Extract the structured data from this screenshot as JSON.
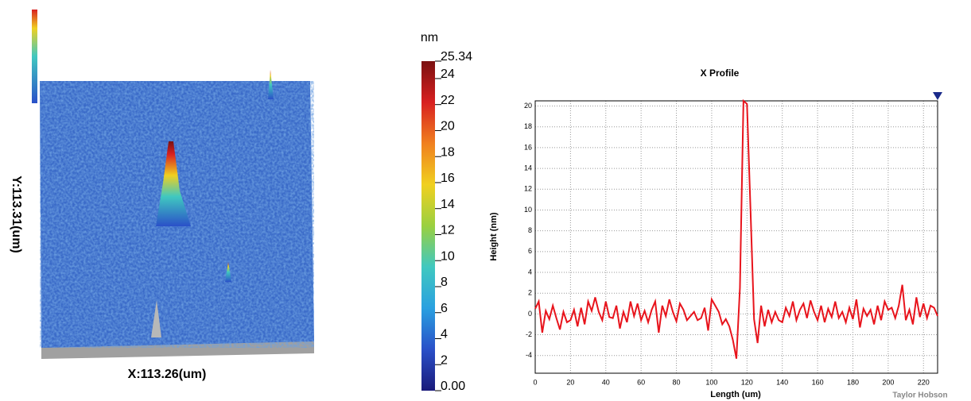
{
  "chart_data": [
    {
      "type": "surface",
      "x_label": "X:113.26(um)",
      "y_label": "Y:113.31(um)"
    },
    {
      "type": "colorbar",
      "unit": "nm",
      "ylim": [
        0,
        25.34
      ],
      "yticks": [
        {
          "value": 0,
          "label": "0.00"
        },
        2,
        4,
        6,
        8,
        10,
        12,
        14,
        16,
        18,
        20,
        22,
        24,
        25.34
      ],
      "colors": [
        "#1a1a7a",
        "#2a50c8",
        "#2aa0e0",
        "#40c8c0",
        "#9ad040",
        "#f0d020",
        "#f08020",
        "#d82020",
        "#7a1010"
      ]
    },
    {
      "type": "line",
      "title": "X Profile",
      "x_label": "Length (um)",
      "y_label": "Height (nm)",
      "annotation": "Taylor Hobson",
      "xlim": [
        0,
        228
      ],
      "ylim": [
        -5.7,
        20.5
      ],
      "xticks": [
        0,
        20,
        40,
        60,
        80,
        100,
        120,
        140,
        160,
        180,
        200,
        220
      ],
      "yticks": [
        -4,
        -2,
        0,
        2,
        4,
        6,
        8,
        10,
        12,
        14,
        16,
        18,
        20
      ],
      "grid": true,
      "x": [
        0,
        2,
        4,
        6,
        8,
        10,
        12,
        14,
        16,
        18,
        20,
        22,
        24,
        26,
        28,
        30,
        32,
        34,
        36,
        38,
        40,
        42,
        44,
        46,
        48,
        50,
        52,
        54,
        56,
        58,
        60,
        62,
        64,
        66,
        68,
        70,
        72,
        74,
        76,
        78,
        80,
        82,
        84,
        86,
        88,
        90,
        92,
        94,
        96,
        98,
        100,
        102,
        104,
        106,
        108,
        110,
        112,
        114,
        116,
        118,
        120,
        122,
        124,
        126,
        128,
        130,
        132,
        134,
        136,
        138,
        140,
        142,
        144,
        146,
        148,
        150,
        152,
        154,
        156,
        158,
        160,
        162,
        164,
        166,
        168,
        170,
        172,
        174,
        176,
        178,
        180,
        182,
        184,
        186,
        188,
        190,
        192,
        194,
        196,
        198,
        200,
        202,
        204,
        206,
        208,
        210,
        212,
        214,
        216,
        218,
        220,
        222,
        224,
        226,
        228
      ],
      "series": [
        {
          "color": "#e8141c",
          "values": [
            0.5,
            1.2,
            -1.8,
            0.3,
            -0.5,
            0.8,
            -0.4,
            -1.5,
            0.2,
            -0.8,
            -0.6,
            0.4,
            -1.2,
            0.6,
            -1.0,
            1.2,
            0.3,
            1.6,
            0.2,
            -0.6,
            1.2,
            -0.3,
            -0.4,
            0.8,
            -1.4,
            0.2,
            -0.8,
            1.2,
            -0.2,
            1.0,
            -0.6,
            0.3,
            -0.8,
            0.4,
            1.2,
            -1.8,
            0.8,
            -0.2,
            1.4,
            0.2,
            -0.7,
            1.0,
            0.4,
            -0.6,
            -0.2,
            0.2,
            -0.6,
            -0.4,
            0.6,
            -1.6,
            1.4,
            0.8,
            0.2,
            -1.0,
            -0.5,
            -1.2,
            -2.5,
            -4.3,
            2.5,
            20.5,
            20.2,
            10.0,
            -0.5,
            -2.8,
            0.8,
            -1.2,
            0.4,
            -0.8,
            0.2,
            -0.6,
            -0.8,
            0.6,
            -0.2,
            1.2,
            -0.6,
            0.4,
            1.0,
            -0.4,
            1.3,
            0.2,
            -0.6,
            0.8,
            -0.8,
            0.5,
            -0.3,
            1.2,
            -0.4,
            0.2,
            -0.8,
            0.6,
            -0.5,
            1.4,
            -1.3,
            0.5,
            -0.2,
            0.4,
            -1.0,
            0.8,
            -0.6,
            1.2,
            0.4,
            0.6,
            -0.4,
            0.8,
            2.8,
            -0.6,
            0.4,
            -1.0,
            1.6,
            -0.3,
            1.0,
            -0.4,
            0.8,
            0.6,
            -0.2
          ]
        }
      ]
    }
  ]
}
